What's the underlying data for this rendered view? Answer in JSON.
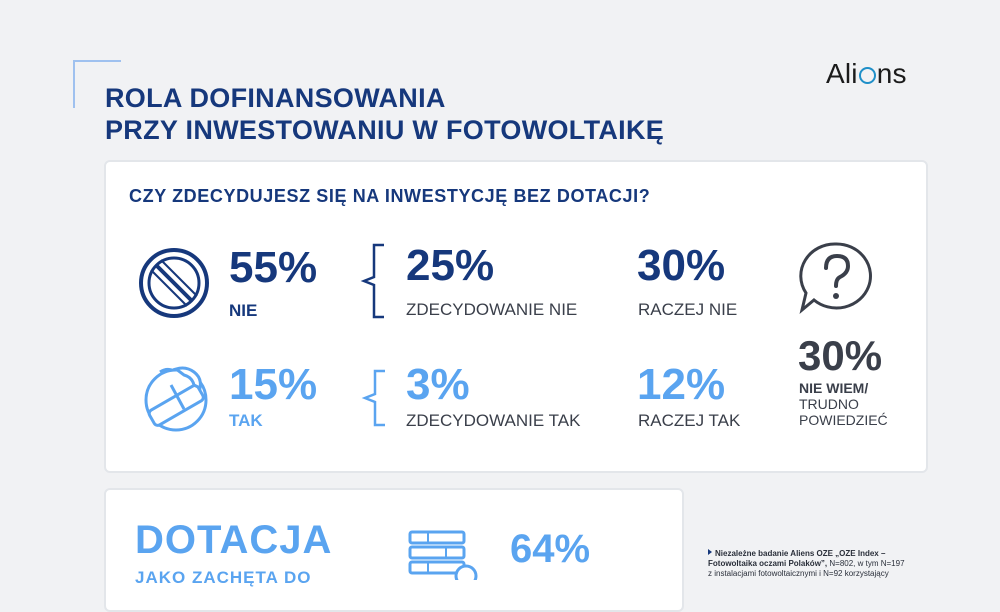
{
  "header": {
    "title_line1": "ROLA DOFINANSOWANIA",
    "title_line2": "PRZY INWESTOWANIU W FOTOWOLTAIKĘ",
    "logo_left": "Ali",
    "logo_right": "ns"
  },
  "survey": {
    "question": "CZY ZDECYDUJESZ SIĘ NA INWESTYCJĘ BEZ DOTACJI?",
    "no": {
      "total": "55%",
      "total_label": "NIE",
      "strong": "25%",
      "strong_label": "ZDECYDOWANIE NIE",
      "rather": "30%",
      "rather_label": "RACZEJ NIE"
    },
    "yes": {
      "total": "15%",
      "total_label": "TAK",
      "strong": "3%",
      "strong_label": "ZDECYDOWANIE TAK",
      "rather": "12%",
      "rather_label": "RACZEJ TAK"
    },
    "unsure": {
      "value": "30%",
      "label_line1": "NIE WIEM/",
      "label_line2": "TRUDNO",
      "label_line3": "POWIEDZIEĆ"
    }
  },
  "subsidy": {
    "title": "DOTACJA",
    "subtitle": "JAKO ZACHĘTA DO",
    "value": "64%"
  },
  "footnote": {
    "line1_bold": "Niezależne badanie Aliens OZE „OZE Index –",
    "line2_bold": "Fotowoltaika oczami Polaków”,",
    "line2_rest": " N=802, w tym N=197",
    "line3": "z instalacjami fotowoltaicznymi i N=92 korzystający"
  },
  "colors": {
    "navy": "#16387c",
    "light_blue": "#5aa4f0",
    "background": "#f1f2f4"
  }
}
